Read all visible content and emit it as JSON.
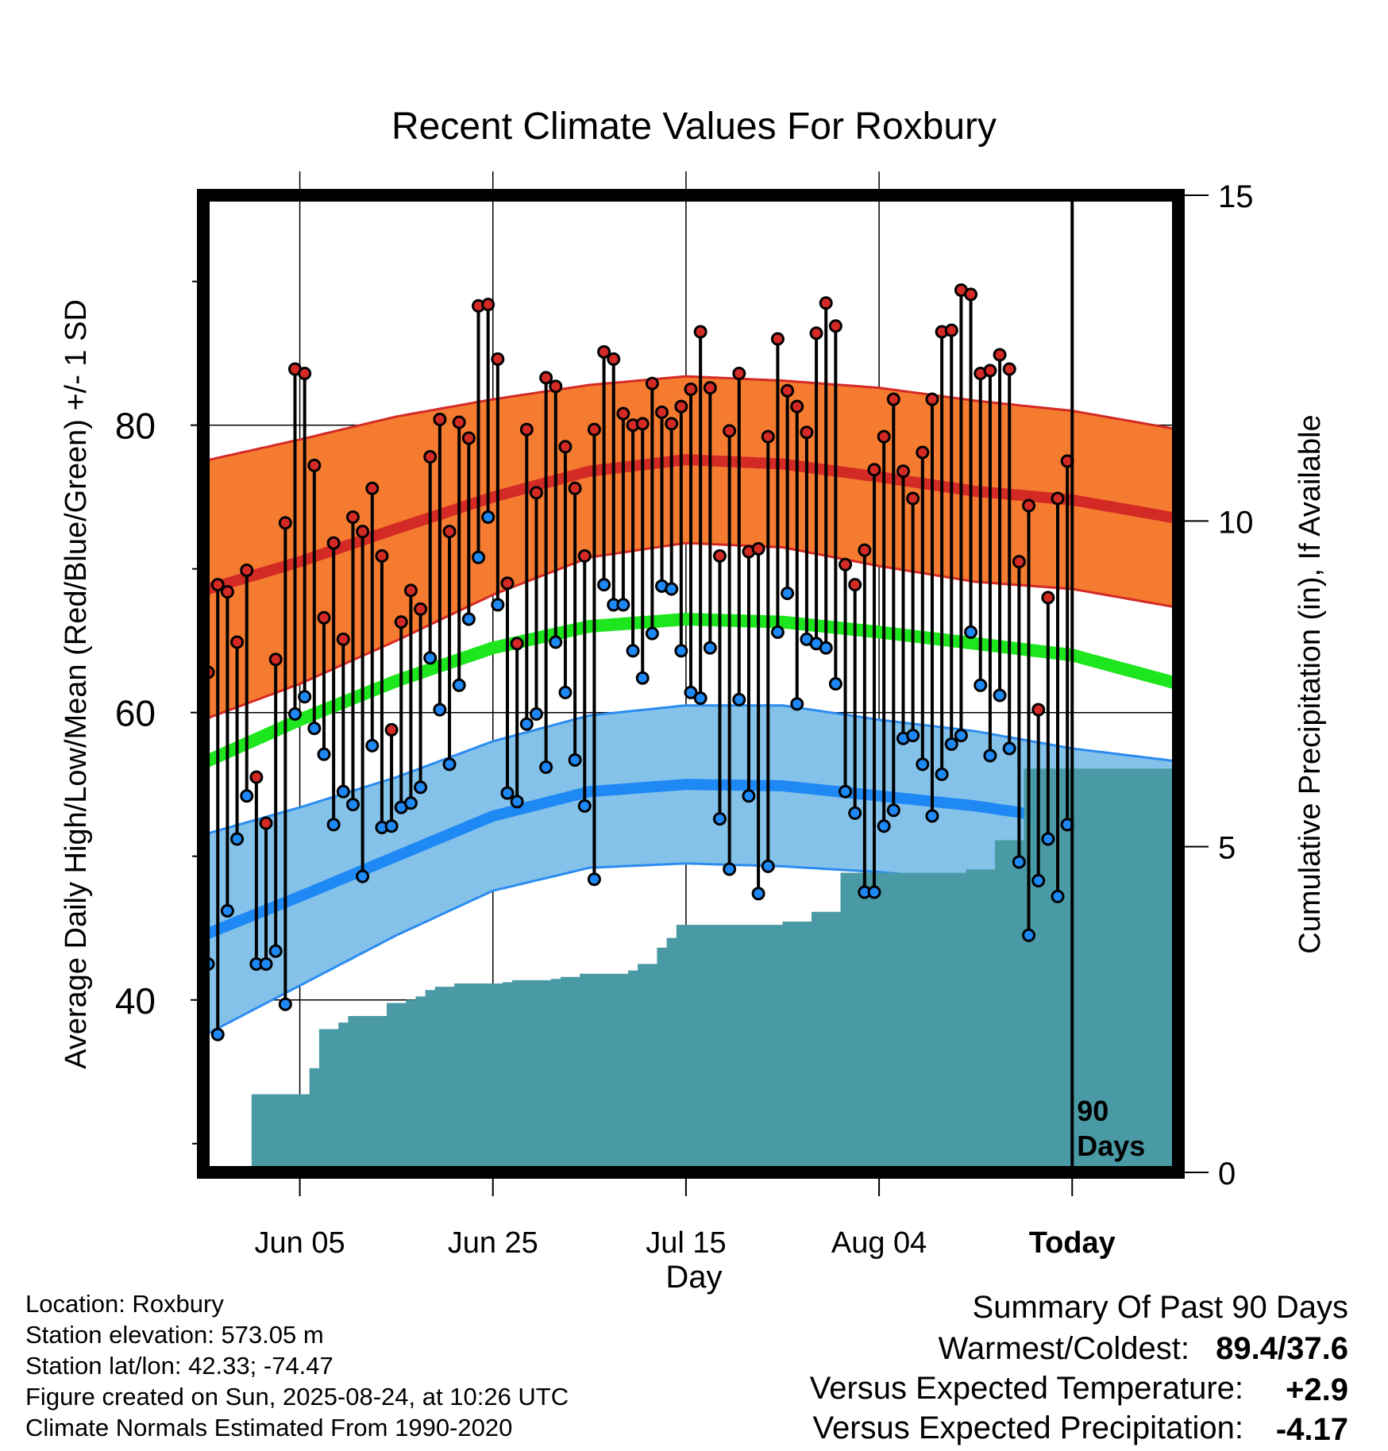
{
  "title": "Recent Climate Values For Roxbury",
  "colors": {
    "high_band": "#f47b30",
    "high_band_edge": "#d42a26",
    "high_mean": "#d42a26",
    "low_band": "#84c2ea",
    "low_band_edge": "#2b8cf0",
    "low_mean": "#1e88f5",
    "mean_line": "#1ee61e",
    "precip": "#4a9aa5",
    "high_dot": "#d42a26",
    "low_dot": "#1e88f5",
    "warm_delta": "#d42a26",
    "precip_delta": "#a0522d"
  },
  "chart_data": {
    "type": "line",
    "title": "Recent Climate Values For Roxbury",
    "xlabel": "Day",
    "ylabel_left": "Average Daily High/Low/Mean (Red/Blue/Green) +/- 1 SD",
    "ylabel_right": "Cumulative Precipitation (in), If Available",
    "x_start": "2025-05-26",
    "x_end": "2025-09-04",
    "today": "2025-08-24",
    "today_marker_label": [
      "90",
      "Days"
    ],
    "ylim_left": [
      28,
      96
    ],
    "yticks_left": [
      40,
      60,
      80
    ],
    "yminor_left": [
      30,
      50,
      70,
      90
    ],
    "ylim_right": [
      0,
      15
    ],
    "yticks_right": [
      0,
      5,
      10,
      15
    ],
    "xticks": [
      {
        "date": "2025-06-05",
        "label": "Jun 05"
      },
      {
        "date": "2025-06-25",
        "label": "Jun 25"
      },
      {
        "date": "2025-07-15",
        "label": "Jul 15"
      },
      {
        "date": "2025-08-04",
        "label": "Aug 04"
      },
      {
        "date": "2025-08-24",
        "label": "Today"
      }
    ],
    "grid": true,
    "normals": {
      "dates": [
        "2025-05-26",
        "2025-06-05",
        "2025-06-15",
        "2025-06-25",
        "2025-07-05",
        "2025-07-15",
        "2025-07-25",
        "2025-08-04",
        "2025-08-14",
        "2025-08-24",
        "2025-09-04"
      ],
      "high_mean": [
        68.5,
        70.5,
        72.8,
        75.0,
        76.8,
        77.6,
        77.3,
        76.4,
        75.4,
        74.8,
        73.5
      ],
      "high_sd": [
        9.0,
        8.5,
        7.8,
        6.8,
        6.0,
        5.8,
        5.8,
        6.2,
        6.3,
        6.2,
        6.2
      ],
      "low_mean": [
        44.5,
        47.2,
        50.0,
        52.8,
        54.5,
        55.0,
        54.9,
        54.2,
        53.5,
        52.5,
        50.8
      ],
      "low_sd": [
        7.0,
        6.2,
        5.5,
        5.2,
        5.3,
        5.5,
        5.6,
        5.3,
        5.2,
        5.0,
        5.8
      ],
      "mean": [
        56.5,
        59.5,
        62.2,
        64.5,
        66.0,
        66.5,
        66.3,
        65.6,
        64.8,
        64.0,
        62.0
      ]
    },
    "daily": {
      "start_date": "2025-05-26",
      "high": [
        62.8,
        68.9,
        68.4,
        64.9,
        69.9,
        55.5,
        52.3,
        63.7,
        73.2,
        83.9,
        83.6,
        77.2,
        66.6,
        71.8,
        65.1,
        73.6,
        72.6,
        75.6,
        70.9,
        58.8,
        66.3,
        68.5,
        67.2,
        77.8,
        80.4,
        72.6,
        80.2,
        79.1,
        88.3,
        88.4,
        84.6,
        69.0,
        64.8,
        79.7,
        75.3,
        83.3,
        82.7,
        78.5,
        75.6,
        70.9,
        79.7,
        85.1,
        84.6,
        80.8,
        80.0,
        80.1,
        82.9,
        80.9,
        80.1,
        81.3,
        82.5,
        86.5,
        82.6,
        70.9,
        79.6,
        83.6,
        71.2,
        71.4,
        79.2,
        86.0,
        82.4,
        81.3,
        79.5,
        86.4,
        88.5,
        86.9,
        70.3,
        68.9,
        71.3,
        76.9,
        79.2,
        81.8,
        76.8,
        74.9,
        78.1,
        81.8,
        86.5,
        86.6,
        89.4,
        89.1,
        83.6,
        83.8,
        84.9,
        83.9,
        70.5,
        74.4,
        60.2,
        68.0,
        74.9,
        77.5
      ],
      "low": [
        42.5,
        37.6,
        46.2,
        51.2,
        54.2,
        42.5,
        42.5,
        43.4,
        39.7,
        59.9,
        61.1,
        58.9,
        57.1,
        52.2,
        54.5,
        53.6,
        48.6,
        57.7,
        52.0,
        52.1,
        53.4,
        53.7,
        54.8,
        63.8,
        60.2,
        56.4,
        61.9,
        66.5,
        70.8,
        73.6,
        67.5,
        54.4,
        53.8,
        59.2,
        59.9,
        56.2,
        64.9,
        61.4,
        56.7,
        53.5,
        48.4,
        68.9,
        67.5,
        67.5,
        64.3,
        62.4,
        65.5,
        68.8,
        68.6,
        64.3,
        61.4,
        61.0,
        64.5,
        52.6,
        49.1,
        60.9,
        54.2,
        47.4,
        49.3,
        65.6,
        68.3,
        60.6,
        65.1,
        64.8,
        64.5,
        62.0,
        54.5,
        53.0,
        47.5,
        47.5,
        52.1,
        53.2,
        58.2,
        58.4,
        56.4,
        52.8,
        55.7,
        57.8,
        58.4,
        65.6,
        61.9,
        57.0,
        61.2,
        57.5,
        49.6,
        44.5,
        48.3,
        51.2,
        47.2,
        52.2
      ]
    },
    "precip_cumulative": {
      "start_date": "2025-05-26",
      "values": [
        0,
        0,
        0,
        0,
        0,
        1.2,
        1.2,
        1.2,
        1.2,
        1.2,
        1.2,
        1.6,
        2.2,
        2.2,
        2.3,
        2.4,
        2.4,
        2.4,
        2.4,
        2.6,
        2.6,
        2.65,
        2.7,
        2.8,
        2.85,
        2.85,
        2.9,
        2.9,
        2.9,
        2.9,
        2.9,
        2.92,
        2.95,
        2.95,
        2.95,
        2.95,
        2.97,
        3.0,
        3.0,
        3.05,
        3.05,
        3.05,
        3.05,
        3.05,
        3.1,
        3.2,
        3.2,
        3.45,
        3.6,
        3.8,
        3.8,
        3.8,
        3.8,
        3.8,
        3.8,
        3.8,
        3.8,
        3.8,
        3.8,
        3.8,
        3.85,
        3.85,
        3.85,
        4.0,
        4.0,
        4.0,
        4.6,
        4.6,
        4.6,
        4.6,
        4.6,
        4.6,
        4.6,
        4.6,
        4.6,
        4.6,
        4.6,
        4.6,
        4.6,
        4.65,
        4.65,
        4.65,
        5.1,
        5.1,
        5.1,
        6.2,
        6.2,
        6.2,
        6.2,
        6.2,
        6.2,
        6.2,
        6.2,
        6.2,
        6.2,
        6.2,
        6.2,
        6.2,
        6.2,
        6.2,
        6.2
      ]
    }
  },
  "info": {
    "location": "Location: Roxbury",
    "elevation": "Station elevation: 573.05 m",
    "latlon": "Station lat/lon: 42.33; -74.47",
    "created": "Figure created on Sun, 2025-08-24, at 10:26 UTC",
    "normals_note": "Climate Normals Estimated From 1990-2020"
  },
  "summary": {
    "heading": "Summary Of Past 90 Days",
    "warm_cold_label": "Warmest/Coldest:",
    "warm_cold_value": "89.4/37.6",
    "temp_label": "Versus Expected Temperature:",
    "temp_value": "+2.9",
    "precip_label": "Versus Expected Precipitation:",
    "precip_value": "-4.17"
  }
}
